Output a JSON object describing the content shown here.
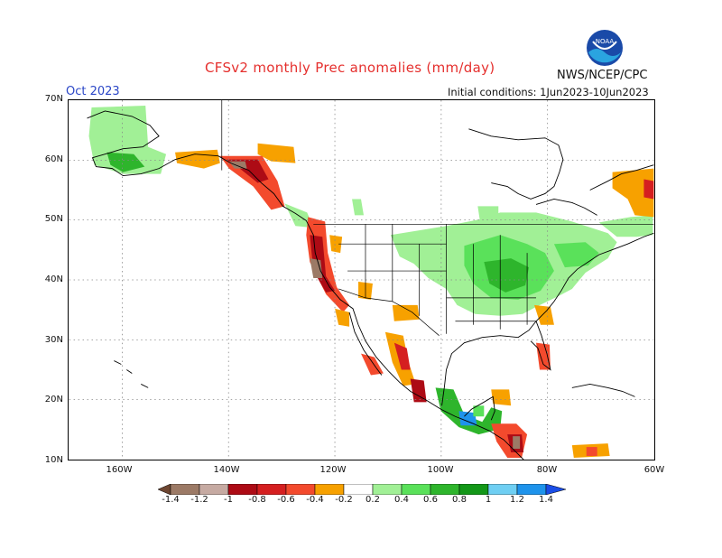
{
  "header": {
    "title": "CFSv2 monthly Prec anomalies (mm/day)",
    "month": "Oct 2023",
    "agency": "NWS/NCEP/CPC",
    "initial_conditions": "Initial conditions: 1Jun2023-10Jun2023",
    "logo_text": "NOAA"
  },
  "map": {
    "lat_labels": [
      "70N",
      "60N",
      "50N",
      "40N",
      "30N",
      "20N",
      "10N"
    ],
    "lon_labels": [
      "160W",
      "140W",
      "120W",
      "100W",
      "80W",
      "60W"
    ],
    "extent": {
      "lon_min": -170,
      "lon_max": -60,
      "lat_min": 10,
      "lat_max": 70
    },
    "grid": "dotted 10 degree",
    "anomaly_regions": [
      {
        "region": "Pacific Northwest / California coast",
        "category": "dry",
        "level": -1.0
      },
      {
        "region": "Southeast Alaska",
        "category": "dry",
        "level": -1.0
      },
      {
        "region": "Southern Alaska coast",
        "category": "dry",
        "level": -0.4
      },
      {
        "region": "Western Mexico",
        "category": "dry",
        "level": -0.6
      },
      {
        "region": "Florida",
        "category": "dry",
        "level": -0.6
      },
      {
        "region": "Labrador coast",
        "category": "dry",
        "level": -0.4
      },
      {
        "region": "Central America",
        "category": "dry",
        "level": -0.8
      },
      {
        "region": "Great Lakes / Ohio Valley",
        "category": "wet",
        "level": 0.6
      },
      {
        "region": "Northern Plains / Midwest",
        "category": "wet",
        "level": 0.4
      },
      {
        "region": "Western Alaska",
        "category": "wet",
        "level": 0.4
      },
      {
        "region": "Bay of Campeche / Southern Mexico",
        "category": "wet",
        "level": 1.0
      }
    ]
  },
  "colorbar": {
    "labels": [
      "-1.4",
      "-1.2",
      "-1",
      "-0.8",
      "-0.6",
      "-0.4",
      "-0.2",
      "0.2",
      "0.4",
      "0.6",
      "0.8",
      "1",
      "1.2",
      "1.4"
    ],
    "colors": [
      "#6e4631",
      "#9c7a66",
      "#c6aaa2",
      "#ad0b15",
      "#d51f20",
      "#f34a2d",
      "#f7a100",
      "#ffffff",
      "#a1f096",
      "#5ae15a",
      "#2eb52c",
      "#139718",
      "#6fcff3",
      "#1e93eb",
      "#1a4de6"
    ]
  }
}
